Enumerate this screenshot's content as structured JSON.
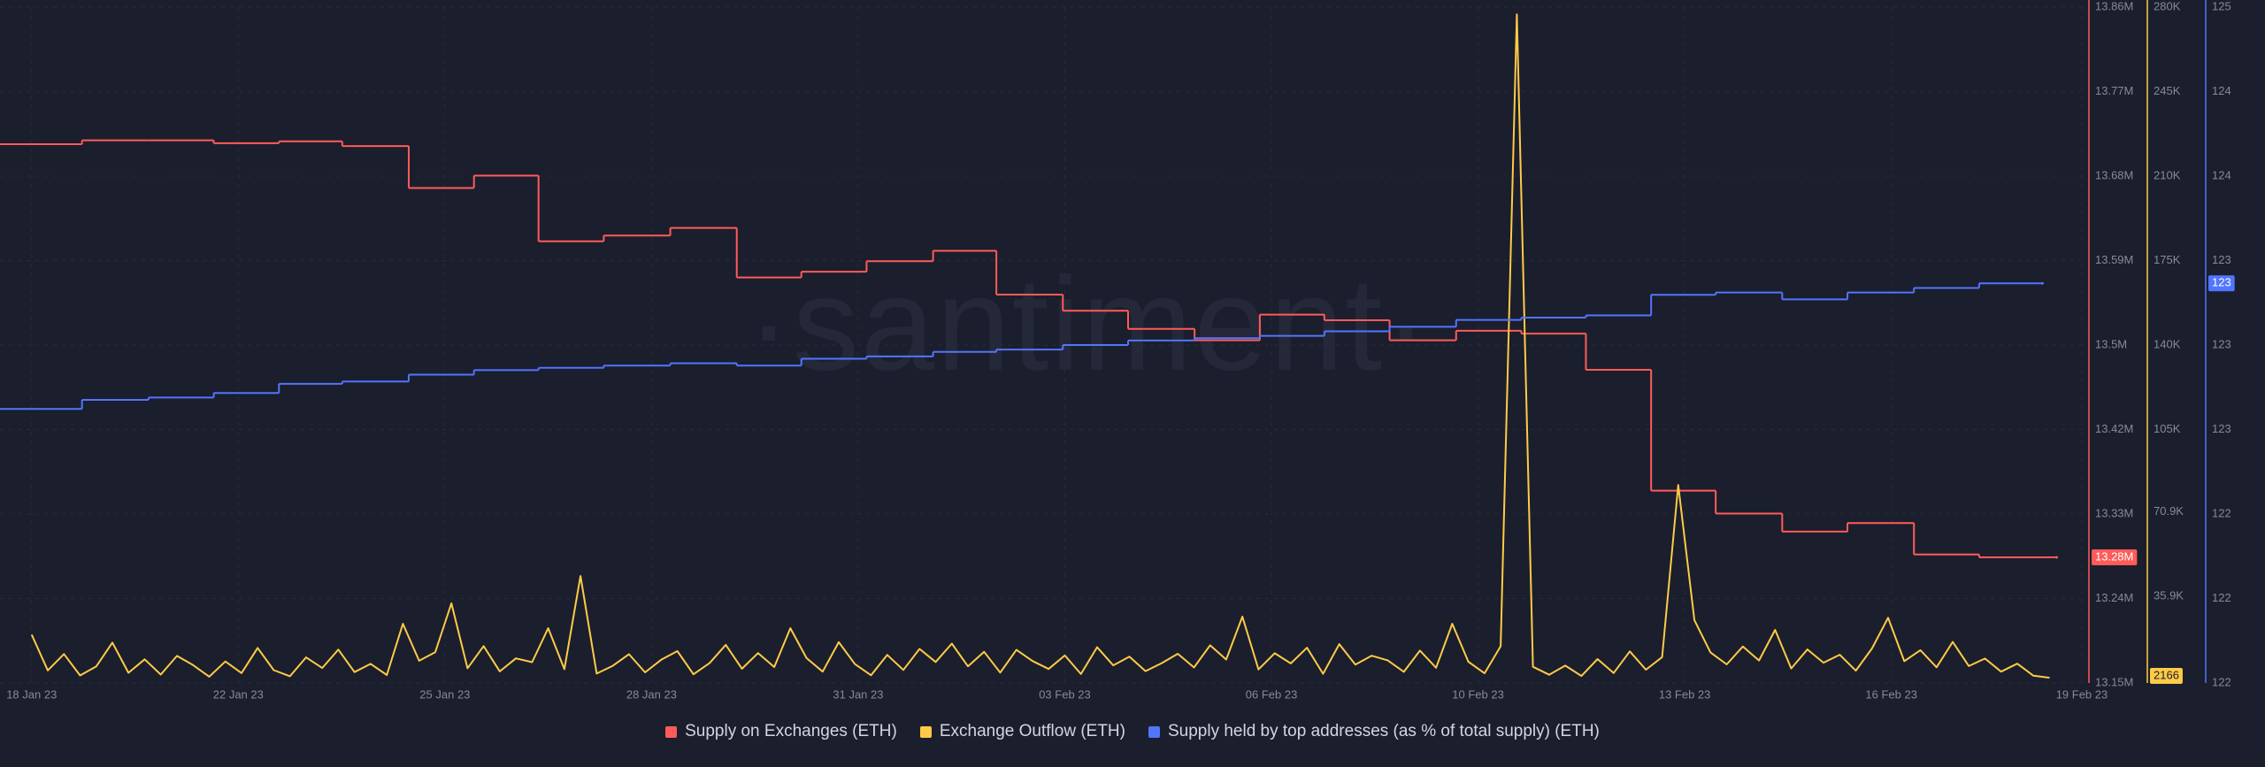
{
  "chart_data": {
    "type": "line",
    "watermark": "·santiment·",
    "grid": true,
    "xlim": [
      -0.49,
      31.86
    ],
    "xticks": [
      {
        "value": 0,
        "label": "18 Jan 23"
      },
      {
        "value": 3.2,
        "label": "22 Jan 23"
      },
      {
        "value": 6.4,
        "label": "25 Jan 23"
      },
      {
        "value": 9.6,
        "label": "28 Jan 23"
      },
      {
        "value": 12.8,
        "label": "31 Jan 23"
      },
      {
        "value": 16,
        "label": "03 Feb 23"
      },
      {
        "value": 19.2,
        "label": "06 Feb 23"
      },
      {
        "value": 22.4,
        "label": "10 Feb 23"
      },
      {
        "value": 25.6,
        "label": "13 Feb 23"
      },
      {
        "value": 28.8,
        "label": "16 Feb 23"
      },
      {
        "value": 31.75,
        "label": "19 Feb 23"
      }
    ],
    "ylim": [
      13150000,
      13860000
    ],
    "yticks": [
      {
        "value": 13150000,
        "label": "13.15M"
      },
      {
        "value": 13238750,
        "label": "13.24M"
      },
      {
        "value": 13327500,
        "label": "13.33M"
      },
      {
        "value": 13416250,
        "label": "13.42M"
      },
      {
        "value": 13505000,
        "label": "13.5M"
      },
      {
        "value": 13593750,
        "label": "13.59M"
      },
      {
        "value": 13682500,
        "label": "13.68M"
      },
      {
        "value": 13771250,
        "label": "13.77M"
      },
      {
        "value": 13860000,
        "label": "13.86M"
      }
    ],
    "y2lim": [
      0,
      280000
    ],
    "y2ticks": [
      {
        "value": 35900,
        "label": "35.9K"
      },
      {
        "value": 70900,
        "label": "70.9K"
      },
      {
        "value": 105000,
        "label": "105K"
      },
      {
        "value": 140000,
        "label": "140K"
      },
      {
        "value": 175000,
        "label": "175K"
      },
      {
        "value": 210000,
        "label": "210K"
      },
      {
        "value": 245000,
        "label": "245K"
      },
      {
        "value": 280000,
        "label": "280K"
      }
    ],
    "y3lim": [
      121.6,
      124.56
    ],
    "y3ticks": [
      {
        "value": 121.6,
        "label": "122"
      },
      {
        "value": 121.97,
        "label": "122"
      },
      {
        "value": 122.34,
        "label": "122"
      },
      {
        "value": 122.71,
        "label": "123"
      },
      {
        "value": 123.08,
        "label": "123"
      },
      {
        "value": 123.45,
        "label": "123"
      },
      {
        "value": 123.82,
        "label": "124"
      },
      {
        "value": 124.19,
        "label": "124"
      },
      {
        "value": 124.56,
        "label": "125"
      }
    ],
    "series": [
      {
        "name": "Supply on Exchanges (ETH)",
        "color": "#ff5b5b",
        "axis": "y",
        "step": true,
        "badge": "13.28M",
        "x": [
          -0.49,
          0.78,
          1.81,
          2.82,
          3.83,
          4.81,
          5.84,
          6.85,
          7.85,
          8.86,
          9.89,
          10.92,
          11.92,
          12.93,
          13.96,
          14.94,
          15.97,
          16.98,
          18.01,
          19.02,
          20.02,
          21.03,
          22.06,
          23.07,
          24.07,
          25.08,
          26.08,
          27.11,
          28.12,
          29.15,
          30.16,
          31.36
        ],
        "values": [
          13716000,
          13720000,
          13720000,
          13717000,
          13719000,
          13714000,
          13670000,
          13683000,
          13614000,
          13620000,
          13628000,
          13576000,
          13582000,
          13593000,
          13604000,
          13558000,
          13541000,
          13522000,
          13510000,
          13537000,
          13531000,
          13510000,
          13520000,
          13517000,
          13479000,
          13352000,
          13328000,
          13309000,
          13318000,
          13285000,
          13282000,
          13282000
        ]
      },
      {
        "name": "Exchange Outflow (ETH)",
        "color": "#ffcb47",
        "axis": "y2",
        "step": false,
        "badge": "2166",
        "x": [
          0,
          0.25,
          0.5,
          0.75,
          1,
          1.25,
          1.5,
          1.75,
          2,
          2.25,
          2.5,
          2.75,
          3,
          3.25,
          3.5,
          3.75,
          4,
          4.25,
          4.5,
          4.75,
          5,
          5.25,
          5.5,
          5.75,
          6,
          6.25,
          6.5,
          6.75,
          7,
          7.25,
          7.5,
          7.75,
          8,
          8.25,
          8.5,
          8.75,
          9,
          9.25,
          9.5,
          9.75,
          10,
          10.25,
          10.5,
          10.75,
          11,
          11.25,
          11.5,
          11.75,
          12,
          12.25,
          12.5,
          12.75,
          13,
          13.25,
          13.5,
          13.75,
          14,
          14.25,
          14.5,
          14.75,
          15,
          15.25,
          15.5,
          15.75,
          16,
          16.25,
          16.5,
          16.75,
          17,
          17.25,
          17.5,
          17.75,
          18,
          18.25,
          18.5,
          18.75,
          19,
          19.25,
          19.5,
          19.75,
          20,
          20.25,
          20.5,
          20.75,
          21,
          21.25,
          21.5,
          21.75,
          22,
          22.25,
          22.5,
          22.75,
          23,
          23.25,
          23.5,
          23.75,
          24,
          24.25,
          24.5,
          24.75,
          25,
          25.25,
          25.5,
          25.75,
          26,
          26.25,
          26.5,
          26.75,
          27,
          27.25,
          27.5,
          27.75,
          28,
          28.25,
          28.5,
          28.75,
          29,
          29.25,
          29.5,
          29.75,
          30,
          30.25,
          30.5,
          30.75,
          31,
          31.25
        ],
        "values": [
          20000,
          5200,
          12000,
          3100,
          6800,
          16700,
          4200,
          9800,
          3500,
          11200,
          7400,
          2600,
          8900,
          4100,
          14500,
          5300,
          2800,
          10600,
          6200,
          13800,
          4500,
          7900,
          3300,
          24500,
          9200,
          12700,
          33000,
          6100,
          15300,
          4800,
          10200,
          8600,
          22700,
          5700,
          44300,
          3900,
          7100,
          11900,
          4400,
          9600,
          13200,
          3600,
          8300,
          15800,
          5900,
          12400,
          6600,
          22700,
          10300,
          4700,
          16900,
          7800,
          3200,
          11600,
          5400,
          14100,
          8700,
          16300,
          6900,
          12900,
          4300,
          13700,
          9100,
          5800,
          11400,
          3700,
          14800,
          7300,
          10900,
          4900,
          8200,
          12100,
          6400,
          15600,
          9700,
          27500,
          5600,
          12300,
          8100,
          14600,
          3800,
          16100,
          7600,
          11300,
          9400,
          4600,
          13400,
          6300,
          24500,
          8800,
          4000,
          15200,
          277000,
          6700,
          3400,
          7200,
          2900,
          9900,
          4100,
          13100,
          5500,
          10700,
          82000,
          26000,
          12600,
          7700,
          15100,
          9300,
          22000,
          6000,
          13900,
          8400,
          11700,
          5100,
          14300,
          27000,
          9000,
          13600,
          6500,
          17000,
          7000,
          10100,
          4700,
          8000,
          3000,
          2166
        ]
      },
      {
        "name": "Supply held by top addresses (as % of total supply) (ETH)",
        "color": "#5275ff",
        "axis": "y3",
        "step": true,
        "badge": "123",
        "x": [
          -0.49,
          0.78,
          1.81,
          2.82,
          3.83,
          4.81,
          5.84,
          6.85,
          7.85,
          8.86,
          9.89,
          10.92,
          11.92,
          12.93,
          13.96,
          14.94,
          15.97,
          16.98,
          18.01,
          19.02,
          20.02,
          21.03,
          22.06,
          23.07,
          24.07,
          25.08,
          26.08,
          27.11,
          28.12,
          29.15,
          30.16,
          31.14
        ],
        "values": [
          122.8,
          122.84,
          122.85,
          122.87,
          122.91,
          122.92,
          122.95,
          122.97,
          122.98,
          122.99,
          123.0,
          122.99,
          123.02,
          123.03,
          123.05,
          123.06,
          123.08,
          123.1,
          123.11,
          123.12,
          123.14,
          123.16,
          123.19,
          123.2,
          123.21,
          123.3,
          123.31,
          123.28,
          123.31,
          123.33,
          123.35,
          123.35
        ]
      }
    ]
  }
}
